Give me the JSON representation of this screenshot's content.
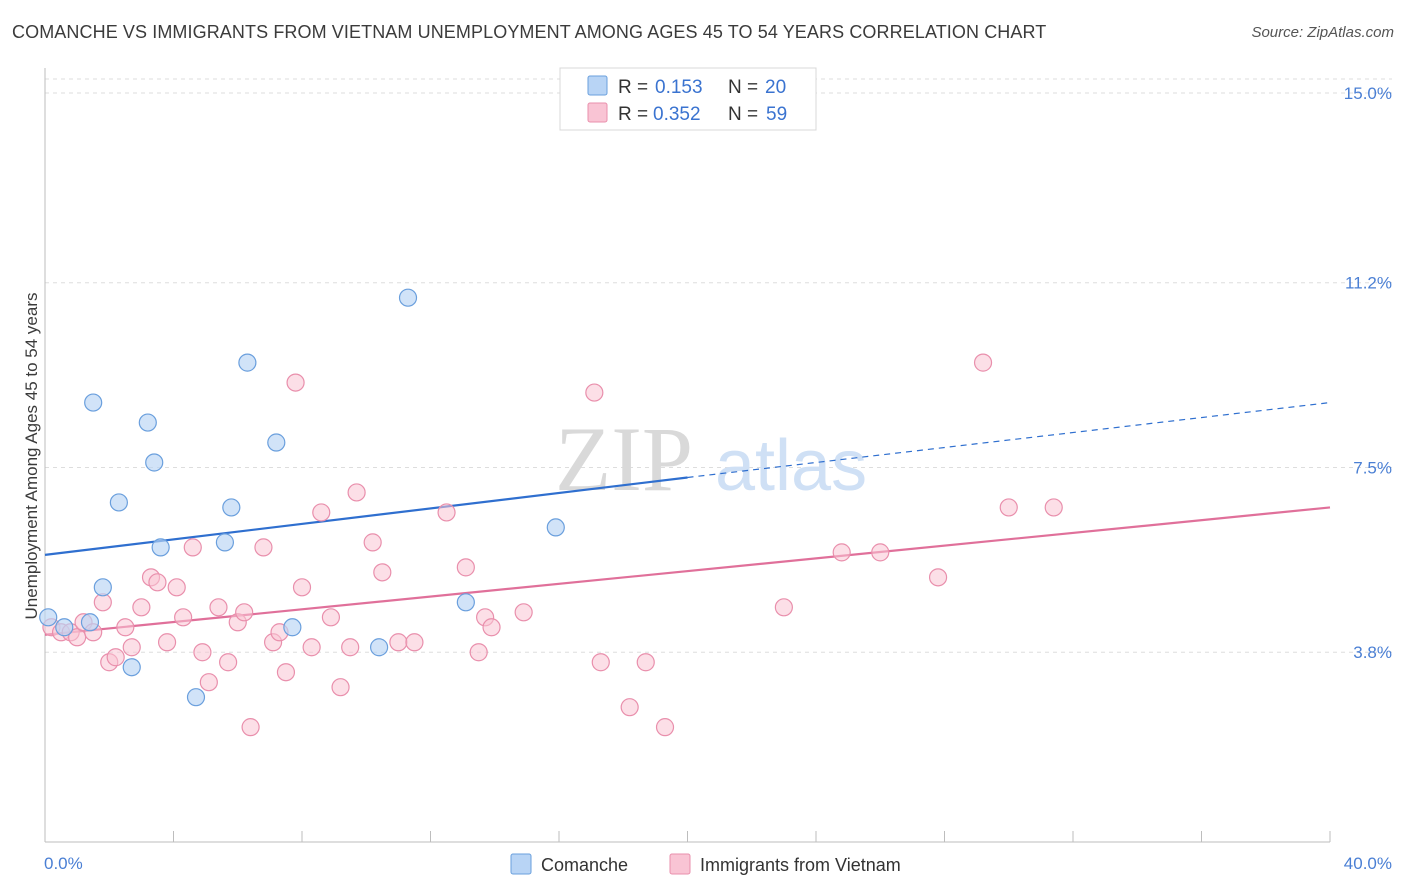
{
  "title": "COMANCHE VS IMMIGRANTS FROM VIETNAM UNEMPLOYMENT AMONG AGES 45 TO 54 YEARS CORRELATION CHART",
  "source": "Source: ZipAtlas.com",
  "watermark": {
    "zip": "ZIP",
    "atlas": "atlas"
  },
  "legend_top": [
    {
      "r_label": "R =",
      "r_value": "0.153",
      "n_label": "N =",
      "n_value": "20"
    },
    {
      "r_label": "R =",
      "r_value": "0.352",
      "n_label": "N =",
      "n_value": "59"
    }
  ],
  "legend_bottom": [
    "Comanche",
    "Immigrants from Vietnam"
  ],
  "colors": {
    "comanche_fill": "#b8d4f5",
    "comanche_stroke": "#6a9fdd",
    "comanche_line": "#2f6fcf",
    "vietnam_fill": "#f9c4d4",
    "vietnam_stroke": "#e98fac",
    "vietnam_line": "#e0709a",
    "tick_label": "#4a7fd4",
    "grid": "#dddddd"
  },
  "chart_data": {
    "type": "scatter",
    "xlabel": "",
    "ylabel": "Unemployment Among Ages 45 to 54 years",
    "xlim": [
      0,
      40
    ],
    "ylim": [
      0,
      15.5
    ],
    "x_tick_labels": [
      "0.0%",
      "40.0%"
    ],
    "y_ticks": [
      3.8,
      7.5,
      11.2,
      15.0
    ],
    "y_tick_labels": [
      "3.8%",
      "7.5%",
      "11.2%",
      "15.0%"
    ],
    "grid": "horizontal dashed",
    "series": [
      {
        "name": "Comanche",
        "points": [
          [
            0.1,
            4.5
          ],
          [
            0.6,
            4.3
          ],
          [
            1.4,
            4.4
          ],
          [
            1.5,
            8.8
          ],
          [
            1.8,
            5.1
          ],
          [
            2.3,
            6.8
          ],
          [
            2.7,
            3.5
          ],
          [
            3.2,
            8.4
          ],
          [
            3.4,
            7.6
          ],
          [
            3.6,
            5.9
          ],
          [
            4.7,
            2.9
          ],
          [
            5.6,
            6.0
          ],
          [
            5.8,
            6.7
          ],
          [
            6.3,
            9.6
          ],
          [
            7.2,
            8.0
          ],
          [
            7.7,
            4.3
          ],
          [
            10.4,
            3.9
          ],
          [
            11.3,
            10.9
          ],
          [
            13.1,
            4.8
          ],
          [
            15.9,
            6.3
          ]
        ],
        "trend": {
          "x": [
            0,
            20
          ],
          "y": [
            5.75,
            7.3
          ]
        },
        "trend_dashed": {
          "x": [
            20,
            40
          ],
          "y": [
            7.3,
            8.8
          ]
        }
      },
      {
        "name": "Immigrants from Vietnam",
        "points": [
          [
            0.2,
            4.3
          ],
          [
            0.5,
            4.2
          ],
          [
            0.8,
            4.2
          ],
          [
            1.0,
            4.1
          ],
          [
            1.2,
            4.4
          ],
          [
            1.5,
            4.2
          ],
          [
            1.8,
            4.8
          ],
          [
            2.0,
            3.6
          ],
          [
            2.2,
            3.7
          ],
          [
            2.5,
            4.3
          ],
          [
            2.7,
            3.9
          ],
          [
            3.0,
            4.7
          ],
          [
            3.3,
            5.3
          ],
          [
            3.5,
            5.2
          ],
          [
            3.8,
            4.0
          ],
          [
            4.1,
            5.1
          ],
          [
            4.3,
            4.5
          ],
          [
            4.6,
            5.9
          ],
          [
            4.9,
            3.8
          ],
          [
            5.1,
            3.2
          ],
          [
            5.4,
            4.7
          ],
          [
            5.7,
            3.6
          ],
          [
            6.0,
            4.4
          ],
          [
            6.2,
            4.6
          ],
          [
            6.4,
            2.3
          ],
          [
            6.8,
            5.9
          ],
          [
            7.1,
            4.0
          ],
          [
            7.3,
            4.2
          ],
          [
            7.5,
            3.4
          ],
          [
            7.8,
            9.2
          ],
          [
            8.0,
            5.1
          ],
          [
            8.3,
            3.9
          ],
          [
            8.6,
            6.6
          ],
          [
            8.9,
            4.5
          ],
          [
            9.2,
            3.1
          ],
          [
            9.5,
            3.9
          ],
          [
            9.7,
            7.0
          ],
          [
            10.2,
            6.0
          ],
          [
            10.5,
            5.4
          ],
          [
            11.0,
            4.0
          ],
          [
            11.5,
            4.0
          ],
          [
            12.5,
            6.6
          ],
          [
            13.1,
            5.5
          ],
          [
            13.5,
            3.8
          ],
          [
            13.7,
            4.5
          ],
          [
            13.9,
            4.3
          ],
          [
            14.9,
            4.6
          ],
          [
            17.1,
            9.0
          ],
          [
            17.3,
            3.6
          ],
          [
            18.2,
            2.7
          ],
          [
            18.7,
            3.6
          ],
          [
            19.3,
            2.3
          ],
          [
            23.0,
            4.7
          ],
          [
            24.8,
            5.8
          ],
          [
            26.0,
            5.8
          ],
          [
            27.8,
            5.3
          ],
          [
            29.2,
            9.6
          ],
          [
            30.0,
            6.7
          ],
          [
            31.4,
            6.7
          ]
        ],
        "trend": {
          "x": [
            0,
            40
          ],
          "y": [
            4.15,
            6.7
          ]
        }
      }
    ]
  }
}
